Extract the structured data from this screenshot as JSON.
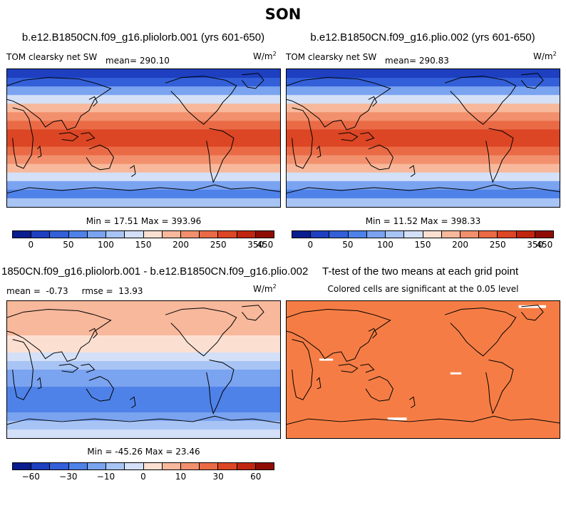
{
  "title": "SON",
  "panels": {
    "tl": {
      "title": "b.e12.B1850CN.f09_g16.pliolorb.001 (yrs 601-650)",
      "left": "TOM clearsky net SW",
      "mean": "mean= 290.10",
      "units": "W/m",
      "units_exp": "2",
      "stats": "Min =  17.51 Max = 393.96"
    },
    "tr": {
      "title": "b.e12.B1850CN.f09_g16.plio.002 (yrs 601-650)",
      "left": "TOM clearsky net SW",
      "mean": "mean= 290.83",
      "units": "W/m",
      "units_exp": "2",
      "stats": "Min =  11.52 Max = 398.33"
    },
    "bl": {
      "title": "1850CN.f09_g16.pliolorb.001 - b.e12.B1850CN.f09_g16.plio.002",
      "left": "mean =  -0.73     rmse =  13.93",
      "units": "W/m",
      "units_exp": "2",
      "stats": "Min = -45.26 Max =  23.46"
    },
    "br": {
      "title": "T-test of the two means at each grid point",
      "subtitle": "Colored cells are significant at the 0.05 level"
    }
  },
  "colorbar_abs": {
    "colors": [
      "#0a1d8f",
      "#1d3fc0",
      "#3360d8",
      "#4f82e8",
      "#7aa3f0",
      "#a8c4f5",
      "#d3e0f7",
      "#fbe0d2",
      "#f7b89b",
      "#f2906d",
      "#ea6a46",
      "#dc4624",
      "#c0260f",
      "#8f0c05"
    ],
    "labels": [
      "0",
      "50",
      "100",
      "150",
      "200",
      "250",
      "350",
      "450"
    ]
  },
  "colorbar_diff": {
    "colors": [
      "#0a1d8f",
      "#1d3fc0",
      "#3360d8",
      "#4f82e8",
      "#7aa3f0",
      "#a8c4f5",
      "#d3e0f7",
      "#fbe0d2",
      "#f7b89b",
      "#f2906d",
      "#ea6a46",
      "#dc4624",
      "#c0260f",
      "#8f0c05"
    ],
    "labels": [
      "−60",
      "−30",
      "−10",
      "0",
      "10",
      "30",
      "60"
    ]
  },
  "map_colors": {
    "abs_bands": [
      "#1d3fc0",
      "#3360d8",
      "#7aa3f0",
      "#d3e0f7",
      "#f7b89b",
      "#f2906d",
      "#ea6a46",
      "#dc4624",
      "#dc4624",
      "#ea6a46",
      "#f2906d",
      "#f7b89b",
      "#d3e0f7",
      "#7aa3f0",
      "#4f82e8",
      "#a8c4f5"
    ],
    "diff_bands": [
      "#f7b89b",
      "#f7b89b",
      "#f7b89b",
      "#f7b89b",
      "#fbe0d2",
      "#fbe0d2",
      "#d3e0f7",
      "#a8c4f5",
      "#7aa3f0",
      "#7aa3f0",
      "#4f82e8",
      "#4f82e8",
      "#4f82e8",
      "#7aa3f0",
      "#a8c4f5",
      "#d3e0f7"
    ],
    "ttest": "#f57d45"
  }
}
